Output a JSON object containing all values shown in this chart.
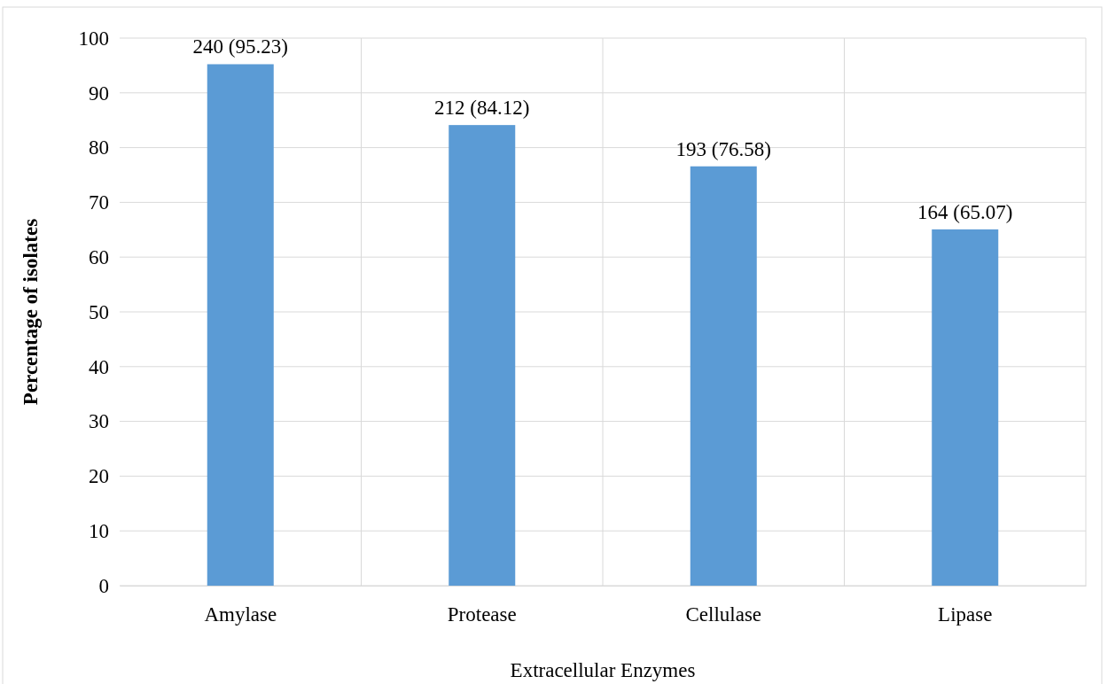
{
  "chart_data": {
    "type": "bar",
    "xlabel": "Extracellular Enzymes",
    "ylabel": "Percentage of isolates",
    "categories": [
      "Amylase",
      "Protease",
      "Cellulase",
      "Lipase"
    ],
    "values": [
      95.23,
      84.12,
      76.58,
      65.07
    ],
    "value_labels": [
      "240  (95.23)",
      "212 (84.12)",
      "193 (76.58)",
      "164 (65.07)"
    ],
    "color": "#5b9bd5",
    "ylim": [
      0,
      100
    ],
    "yticks": [
      0,
      10,
      20,
      30,
      40,
      50,
      60,
      70,
      80,
      90,
      100
    ],
    "grid": true
  }
}
